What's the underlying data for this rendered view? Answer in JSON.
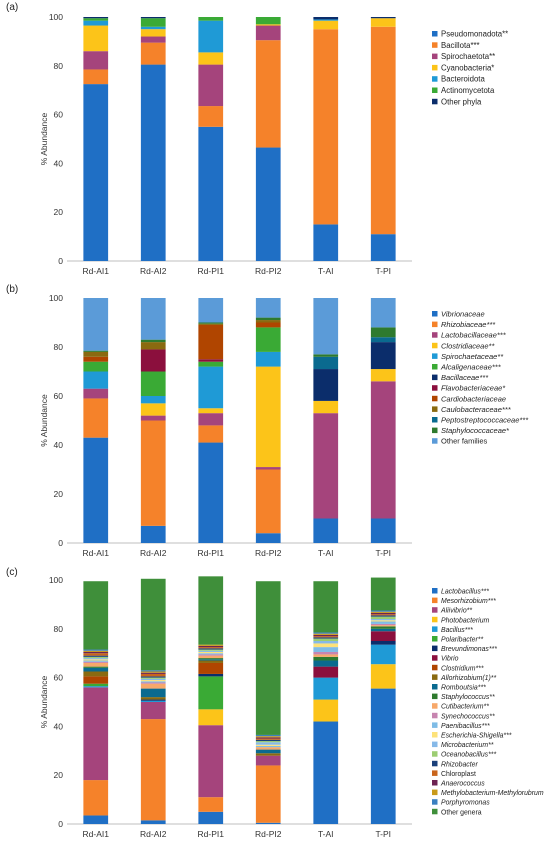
{
  "chart_data": [
    {
      "type": "bar",
      "stacked": true,
      "panel_label": "(a)",
      "categories": [
        "Rd-AI1",
        "Rd-AI2",
        "Rd-PI1",
        "Rd-PI2",
        "T-AI",
        "T-PI"
      ],
      "ylabel": "% Abundance",
      "ylim": [
        0,
        100
      ],
      "yticks": [
        0,
        20,
        40,
        60,
        80,
        100
      ],
      "legend_position": "right",
      "grid": false,
      "series": [
        {
          "name": "Pseudomonadota**",
          "italic": false,
          "color": "#1f6fc5",
          "values": [
            72.5,
            80.5,
            55,
            46.5,
            15,
            11
          ]
        },
        {
          "name": "Bacillota***",
          "italic": false,
          "color": "#f5822a",
          "values": [
            6,
            9,
            8.5,
            44,
            80,
            85
          ]
        },
        {
          "name": "Spirochaetota**",
          "italic": false,
          "color": "#a5447c",
          "values": [
            7.5,
            2.5,
            17,
            6,
            0,
            0
          ]
        },
        {
          "name": "Cyanobacteria*",
          "italic": false,
          "color": "#fcc419",
          "values": [
            10.5,
            3,
            5,
            0.5,
            3.5,
            3.5
          ]
        },
        {
          "name": "Bacteroidota",
          "italic": false,
          "color": "#1f9ad6",
          "values": [
            2,
            1,
            13,
            0,
            0.5,
            0
          ]
        },
        {
          "name": "Actinomycetota",
          "italic": false,
          "color": "#3aaa35",
          "values": [
            1,
            3.5,
            1.5,
            3,
            0,
            0
          ]
        },
        {
          "name": "Other phyla",
          "italic": false,
          "color": "#0b2d6b",
          "values": [
            0.5,
            0.5,
            0,
            0,
            1,
            0.5
          ]
        }
      ]
    },
    {
      "type": "bar",
      "stacked": true,
      "panel_label": "(b)",
      "categories": [
        "Rd-AI1",
        "Rd-AI2",
        "Rd-PI1",
        "Rd-PI2",
        "T-AI",
        "T-PI"
      ],
      "ylabel": "% Abundance",
      "ylim": [
        0,
        100
      ],
      "yticks": [
        0,
        20,
        40,
        60,
        80,
        100
      ],
      "legend_position": "right",
      "grid": false,
      "series": [
        {
          "name": "Vibrionaceae",
          "italic": true,
          "color": "#1f6fc5",
          "values": [
            43,
            7,
            41,
            4,
            10,
            10
          ]
        },
        {
          "name": "Rhizobiaceae***",
          "italic": true,
          "color": "#f5822a",
          "values": [
            16,
            43,
            7,
            26,
            0,
            0
          ]
        },
        {
          "name": "Lactobacillaceae***",
          "italic": true,
          "color": "#a5447c",
          "values": [
            4,
            2,
            5,
            1,
            43,
            56
          ]
        },
        {
          "name": "Clostridiaceae**",
          "italic": true,
          "color": "#fcc419",
          "values": [
            0,
            5,
            2,
            41,
            5,
            5
          ]
        },
        {
          "name": "Spirochaetaceae**",
          "italic": true,
          "color": "#1f9ad6",
          "values": [
            7,
            3,
            17,
            6,
            0,
            0
          ]
        },
        {
          "name": "Alcaligenaceae***",
          "italic": true,
          "color": "#3aaa35",
          "values": [
            4,
            10,
            2,
            10,
            0,
            0
          ]
        },
        {
          "name": "Bacillaceae***",
          "italic": true,
          "color": "#0b2d6b",
          "values": [
            0,
            0,
            0,
            0,
            13,
            11
          ]
        },
        {
          "name": "Flavobacteriaceae*",
          "italic": true,
          "color": "#8b0f3d",
          "values": [
            0,
            9,
            1,
            0,
            0,
            0
          ]
        },
        {
          "name": "Cardiobacteriaceae",
          "italic": true,
          "color": "#b04500",
          "values": [
            2,
            0,
            14,
            2,
            0,
            0
          ]
        },
        {
          "name": "Caulobacteraceae***",
          "italic": true,
          "color": "#8a6a10",
          "values": [
            2,
            3,
            0.5,
            1,
            0,
            0
          ]
        },
        {
          "name": "Peptostreptococcaceae***",
          "italic": true,
          "color": "#0a6a8f",
          "values": [
            0,
            0,
            0,
            0,
            5,
            2
          ]
        },
        {
          "name": "Staphylococcaceae*",
          "italic": true,
          "color": "#2e7a2e",
          "values": [
            0.5,
            1,
            0.5,
            1,
            1,
            4
          ]
        },
        {
          "name": "Other families",
          "italic": false,
          "color": "#5b9bd8",
          "values": [
            21.5,
            17,
            10,
            8,
            23,
            12
          ]
        }
      ]
    },
    {
      "type": "bar",
      "stacked": true,
      "panel_label": "(c)",
      "categories": [
        "Rd-AI1",
        "Rd-AI2",
        "Rd-PI1",
        "Rd-PI2",
        "T-AI",
        "T-PI"
      ],
      "ylabel": "% Abundance",
      "ylim": [
        0,
        100
      ],
      "yticks": [
        0,
        20,
        40,
        60,
        80,
        100
      ],
      "legend_position": "right",
      "grid": false,
      "series": [
        {
          "name": "Lactobacillus***",
          "italic": true,
          "color": "#1f6fc5",
          "values": [
            3.5,
            1.5,
            5,
            0.5,
            42,
            55.5
          ]
        },
        {
          "name": "Mesorhizobium***",
          "italic": true,
          "color": "#f5822a",
          "values": [
            14.5,
            41.5,
            6,
            23.5,
            0,
            0
          ]
        },
        {
          "name": "Aliivibrio**",
          "italic": true,
          "color": "#a5447c",
          "values": [
            38,
            7,
            29.5,
            4,
            0,
            0
          ]
        },
        {
          "name": "Photobacterium",
          "italic": true,
          "color": "#fcc419",
          "values": [
            0,
            0,
            6.5,
            0,
            9,
            10
          ]
        },
        {
          "name": "Bacillus***",
          "italic": true,
          "color": "#1f9ad6",
          "values": [
            0.5,
            0.5,
            0,
            0,
            9,
            8
          ]
        },
        {
          "name": "Polaribacter**",
          "italic": true,
          "color": "#3aaa35",
          "values": [
            1,
            0,
            13.5,
            0,
            0,
            0
          ]
        },
        {
          "name": "Brevundimonas***",
          "italic": true,
          "color": "#0b2d6b",
          "values": [
            0,
            0.5,
            1,
            0,
            0,
            1.5
          ]
        },
        {
          "name": "Vibrio",
          "italic": true,
          "color": "#8b0f3d",
          "values": [
            0,
            0,
            0,
            0,
            4.5,
            4
          ]
        },
        {
          "name": "Clostridium***",
          "italic": true,
          "color": "#b04500",
          "values": [
            3,
            0,
            4.5,
            0,
            0,
            0
          ]
        },
        {
          "name": "Allorhizobium(1)**",
          "italic": true,
          "color": "#8a6a10",
          "values": [
            2,
            1,
            1,
            1,
            0,
            0
          ]
        },
        {
          "name": "Romboutsia***",
          "italic": true,
          "color": "#0a6a8f",
          "values": [
            1.5,
            3.5,
            0.5,
            1.5,
            2.5,
            1
          ]
        },
        {
          "name": "Staphylococcus**",
          "italic": true,
          "color": "#2e7a2e",
          "values": [
            0.5,
            0,
            0.5,
            0,
            1.5,
            1
          ]
        },
        {
          "name": "Cutibacterium**",
          "italic": true,
          "color": "#f7a86a",
          "values": [
            1.5,
            2,
            1,
            1,
            1,
            0.5
          ]
        },
        {
          "name": "Synechococcus**",
          "italic": true,
          "color": "#c785b0",
          "values": [
            0.5,
            0.5,
            0.5,
            0,
            1,
            0.5
          ]
        },
        {
          "name": "Paenibacillus***",
          "italic": true,
          "color": "#7fbce6",
          "values": [
            0.5,
            0.5,
            0.5,
            0.5,
            2,
            1
          ]
        },
        {
          "name": "Escherichia-Shigella***",
          "italic": true,
          "color": "#fde27a",
          "values": [
            0.5,
            0.5,
            0.5,
            0.5,
            1.5,
            0.5
          ]
        },
        {
          "name": "Microbacterium**",
          "italic": true,
          "color": "#86b9e8",
          "values": [
            0.5,
            0.5,
            0.5,
            1,
            1,
            0.5
          ]
        },
        {
          "name": "Oceanobacillus***",
          "italic": true,
          "color": "#9ccd72",
          "values": [
            0.5,
            0.5,
            0.5,
            0.5,
            1,
            1
          ]
        },
        {
          "name": "Rhizobacter",
          "italic": true,
          "color": "#1a3f7a",
          "values": [
            0.5,
            0.5,
            0.5,
            0.5,
            0.5,
            0.5
          ]
        },
        {
          "name": "Chloroplast",
          "italic": false,
          "color": "#c9651c",
          "values": [
            1,
            1,
            0.5,
            0.5,
            0.5,
            0.5
          ]
        },
        {
          "name": "Anaerococcus",
          "italic": true,
          "color": "#6d2351",
          "values": [
            0.5,
            0.5,
            0.5,
            0.5,
            0.5,
            0.5
          ]
        },
        {
          "name": "Methylobacterium-Methylorubrum",
          "italic": true,
          "color": "#c99a1a",
          "values": [
            0.5,
            0.5,
            0.5,
            0.5,
            0.5,
            0.5
          ]
        },
        {
          "name": "Porphyromonas",
          "italic": true,
          "color": "#3b80c0",
          "values": [
            0.5,
            0.5,
            0,
            0.5,
            0.5,
            0.5
          ]
        },
        {
          "name": "Other genera",
          "italic": false,
          "color": "#3f8f3a",
          "values": [
            28,
            37.5,
            28,
            63,
            21,
            13.5
          ]
        }
      ]
    }
  ]
}
